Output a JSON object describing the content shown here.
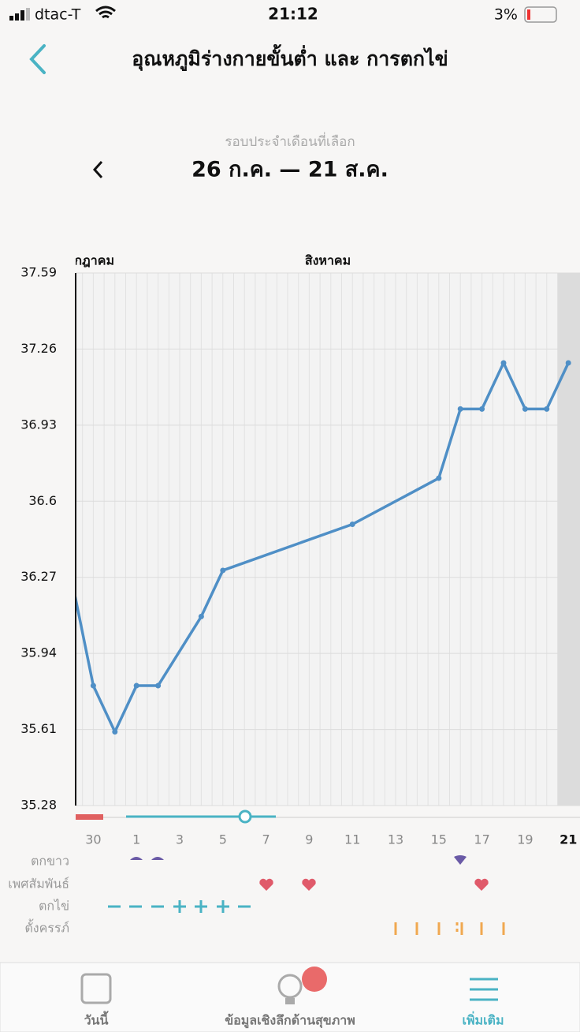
{
  "status_bar": {
    "carrier": "dtac-T",
    "time": "21:12",
    "battery": "3%"
  },
  "header": {
    "title": "อุณหภูมิร่างกายขั้นต่ำ และ การตกไข่"
  },
  "cycle": {
    "label": "รอบประจำเดือนที่เลือก",
    "range": "26 ก.ค. — 21 ส.ค."
  },
  "chart_data": {
    "type": "line",
    "months": [
      "กรกฎาคม",
      "สิงหาคม"
    ],
    "categories": [
      null,
      "30",
      null,
      "1",
      null,
      "3",
      null,
      "5",
      null,
      "7",
      null,
      "9",
      null,
      "11",
      null,
      "13",
      null,
      "15",
      null,
      "17",
      null,
      "19",
      null,
      "21"
    ],
    "series": [
      {
        "color": "#4f8fc6",
        "values": [
          36.26,
          35.8,
          35.6,
          35.8,
          35.8,
          null,
          36.1,
          36.3,
          null,
          null,
          null,
          null,
          null,
          36.5,
          null,
          null,
          null,
          36.7,
          37.0,
          37.0,
          37.2,
          37.0,
          37.0,
          37.2
        ]
      }
    ],
    "ylim": [
      35.28,
      37.59
    ],
    "yticks": [
      35.28,
      35.61,
      35.94,
      36.27,
      36.6,
      36.93,
      37.26,
      37.59
    ],
    "grid": true
  },
  "tracks": {
    "labels": [
      "ตกขาว",
      "เพศสัมพันธ์",
      "ตกไข่",
      "ตั้งครรภ์"
    ]
  },
  "tabs": [
    "วันนี้",
    "ข้อมูลเชิงลึกด้านสุขภาพ",
    "เพิ่มเติม"
  ]
}
